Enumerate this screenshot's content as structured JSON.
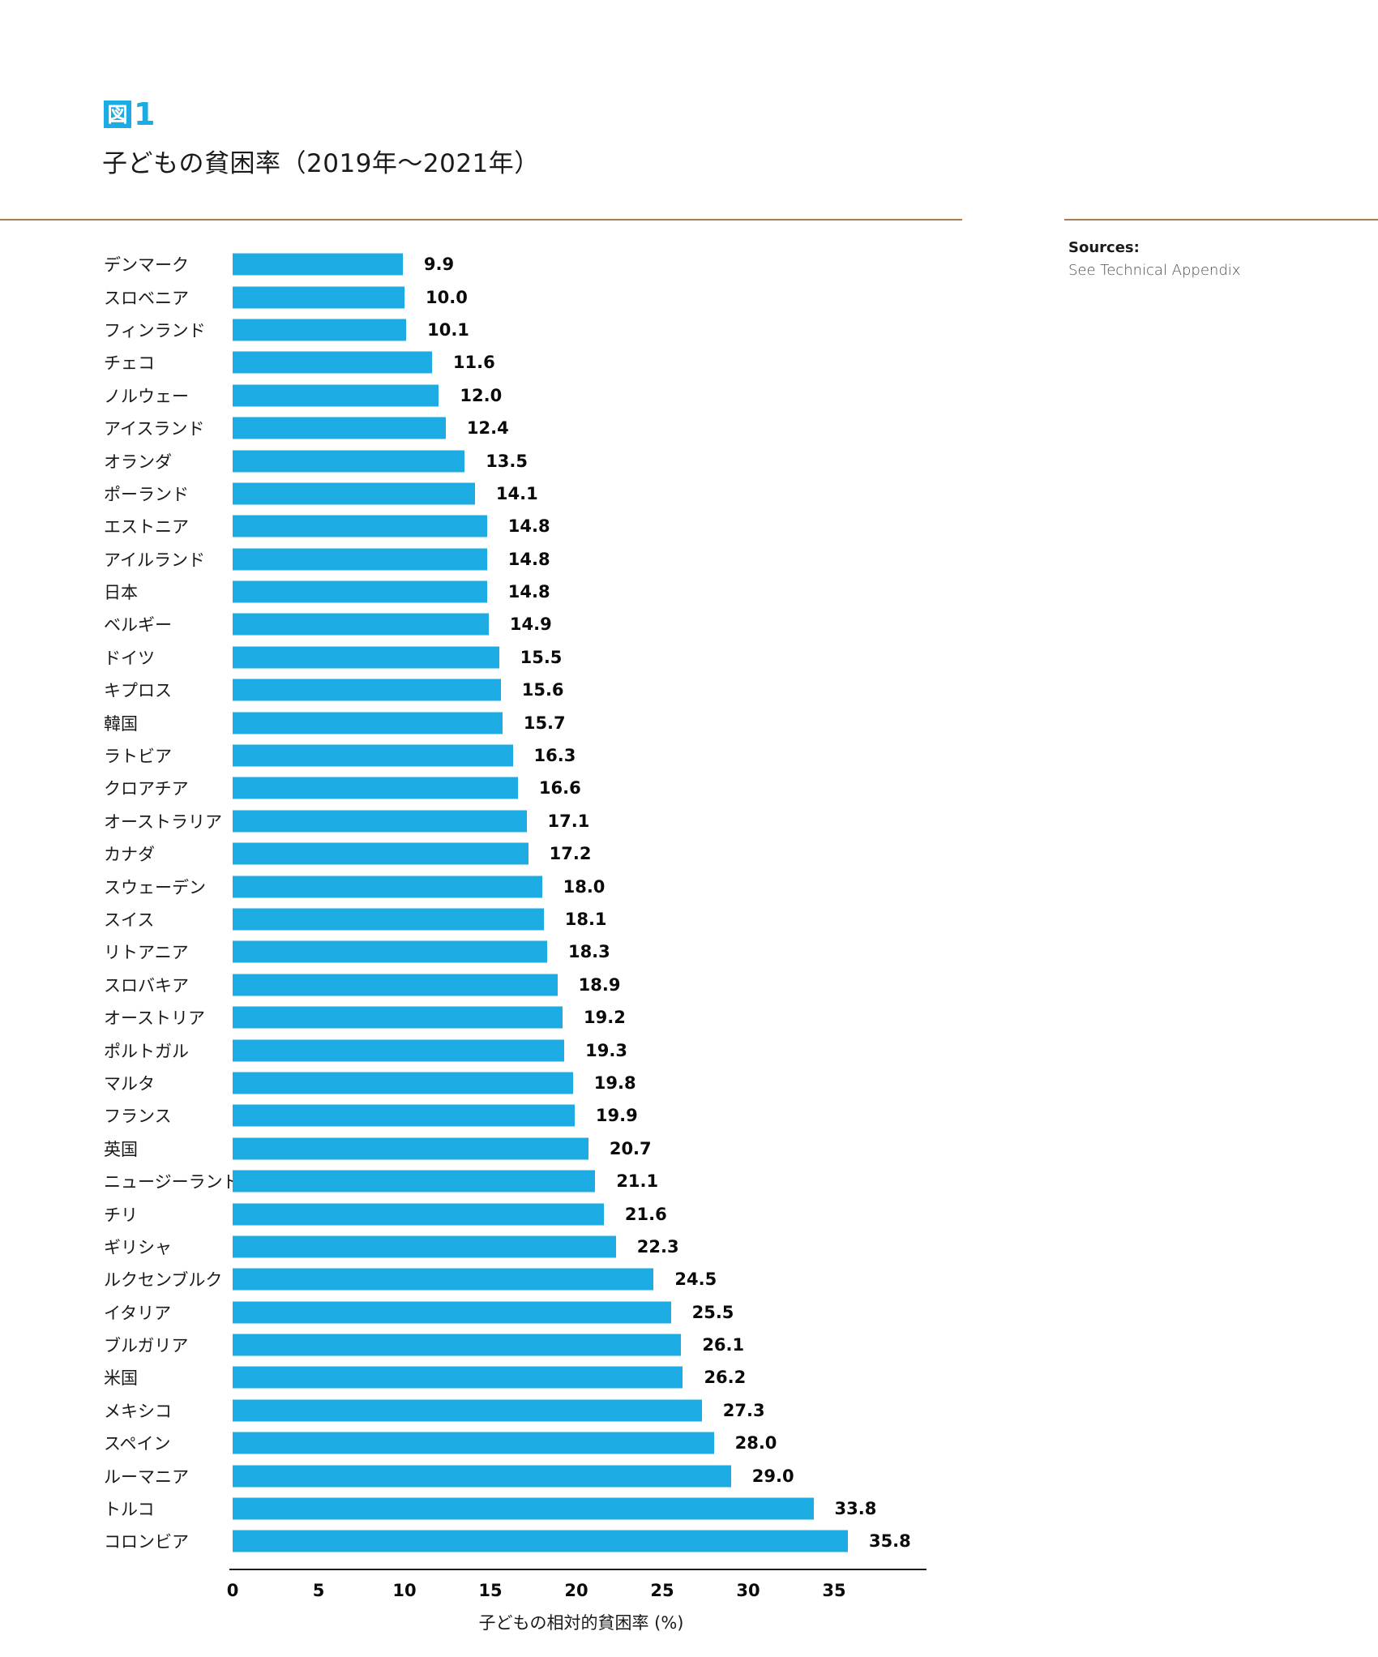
{
  "figure": {
    "badge": "図",
    "number": "1",
    "title": "子どもの貧困率（2019年～2021年）"
  },
  "sources": {
    "label": "Sources:",
    "text": "See Technical Appendix"
  },
  "colors": {
    "accent": "#1CABE2",
    "divider": "#A87D52",
    "text": "#1A1A1A"
  },
  "chart_data": {
    "type": "bar",
    "orientation": "horizontal",
    "title": "子どもの貧困率（2019年～2021年）",
    "xlabel": "子どもの相対的貧困率 (%)",
    "ylabel": "",
    "xlim": [
      0,
      40
    ],
    "xticks": [
      0,
      5,
      10,
      15,
      20,
      25,
      30,
      35
    ],
    "xtick_labels": [
      "0",
      "5",
      "10",
      "15",
      "20",
      "25",
      "30",
      "35"
    ],
    "grid": false,
    "legend": null,
    "bar_color": "#1CABE2",
    "categories": [
      "デンマーク",
      "スロベニア",
      "フィンランド",
      "チェコ",
      "ノルウェー",
      "アイスランド",
      "オランダ",
      "ポーランド",
      "エストニア",
      "アイルランド",
      "日本",
      "ベルギー",
      "ドイツ",
      "キプロス",
      "韓国",
      "ラトビア",
      "クロアチア",
      "オーストラリア",
      "カナダ",
      "スウェーデン",
      "スイス",
      "リトアニア",
      "スロバキア",
      "オーストリア",
      "ポルトガル",
      "マルタ",
      "フランス",
      "英国",
      "ニュージーランド",
      "チリ",
      "ギリシャ",
      "ルクセンブルク",
      "イタリア",
      "ブルガリア",
      "米国",
      "メキシコ",
      "スペイン",
      "ルーマニア",
      "トルコ",
      "コロンビア"
    ],
    "values": [
      9.9,
      10.0,
      10.1,
      11.6,
      12.0,
      12.4,
      13.5,
      14.1,
      14.8,
      14.8,
      14.8,
      14.9,
      15.5,
      15.6,
      15.7,
      16.3,
      16.6,
      17.1,
      17.2,
      18.0,
      18.1,
      18.3,
      18.9,
      19.2,
      19.3,
      19.8,
      19.9,
      20.7,
      21.1,
      21.6,
      22.3,
      24.5,
      25.5,
      26.1,
      26.2,
      27.3,
      28.0,
      29.0,
      33.8,
      35.8
    ],
    "value_labels": [
      "9.9",
      "10.0",
      "10.1",
      "11.6",
      "12.0",
      "12.4",
      "13.5",
      "14.1",
      "14.8",
      "14.8",
      "14.8",
      "14.9",
      "15.5",
      "15.6",
      "15.7",
      "16.3",
      "16.6",
      "17.1",
      "17.2",
      "18.0",
      "18.1",
      "18.3",
      "18.9",
      "19.2",
      "19.3",
      "19.8",
      "19.9",
      "20.7",
      "21.1",
      "21.6",
      "22.3",
      "24.5",
      "25.5",
      "26.1",
      "26.2",
      "27.3",
      "28.0",
      "29.0",
      "33.8",
      "35.8"
    ]
  }
}
